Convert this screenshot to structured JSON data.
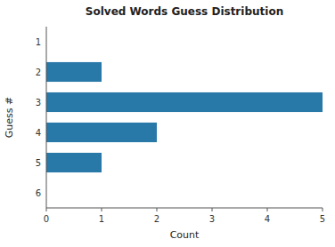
{
  "chart_data": {
    "type": "bar",
    "orientation": "horizontal",
    "title": "Solved Words Guess Distribution",
    "xlabel": "Count",
    "ylabel": "Guess #",
    "categories": [
      "1",
      "2",
      "3",
      "4",
      "5",
      "6"
    ],
    "values": [
      0,
      1,
      5,
      2,
      1,
      0
    ],
    "color": "#2878a8",
    "xlim": [
      0,
      5
    ],
    "xticks": [
      0,
      1,
      2,
      3,
      4,
      5
    ],
    "grid": false
  }
}
